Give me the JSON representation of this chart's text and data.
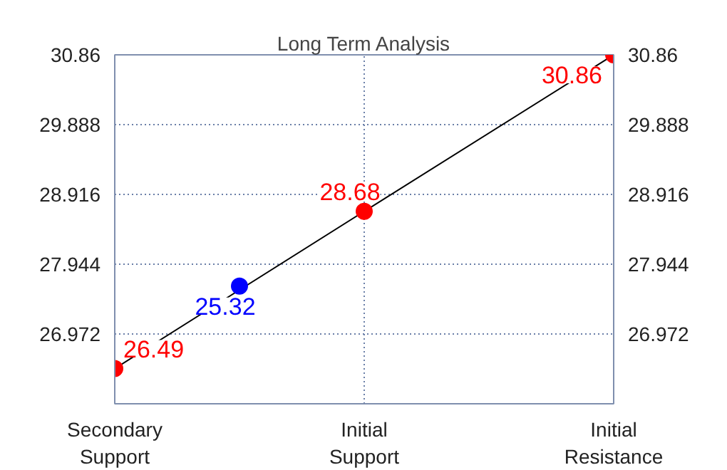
{
  "chart_data": {
    "type": "line",
    "title": "Long Term Analysis",
    "categories": [
      "Secondary\nSupport",
      null,
      "Initial\nSupport",
      null,
      "Initial\nResistance"
    ],
    "ylim": [
      26.0,
      30.86
    ],
    "yticks": [
      26.972,
      27.944,
      28.916,
      29.888,
      30.86
    ],
    "y2lim": [
      26.0,
      30.86
    ],
    "y2ticks": [
      26.972,
      27.944,
      28.916,
      29.888,
      30.86
    ],
    "grid": true,
    "marker": "circle",
    "line_style": "solid",
    "series": [
      {
        "color": "#ff0000",
        "values": [
          26.49,
          null,
          28.68,
          null,
          30.86
        ],
        "data_labels": true
      },
      {
        "type": "scatter",
        "color": "#0000ff",
        "values": [
          null,
          27.64,
          null,
          null,
          null
        ]
      }
    ],
    "annotations": [
      "25.32"
    ]
  }
}
